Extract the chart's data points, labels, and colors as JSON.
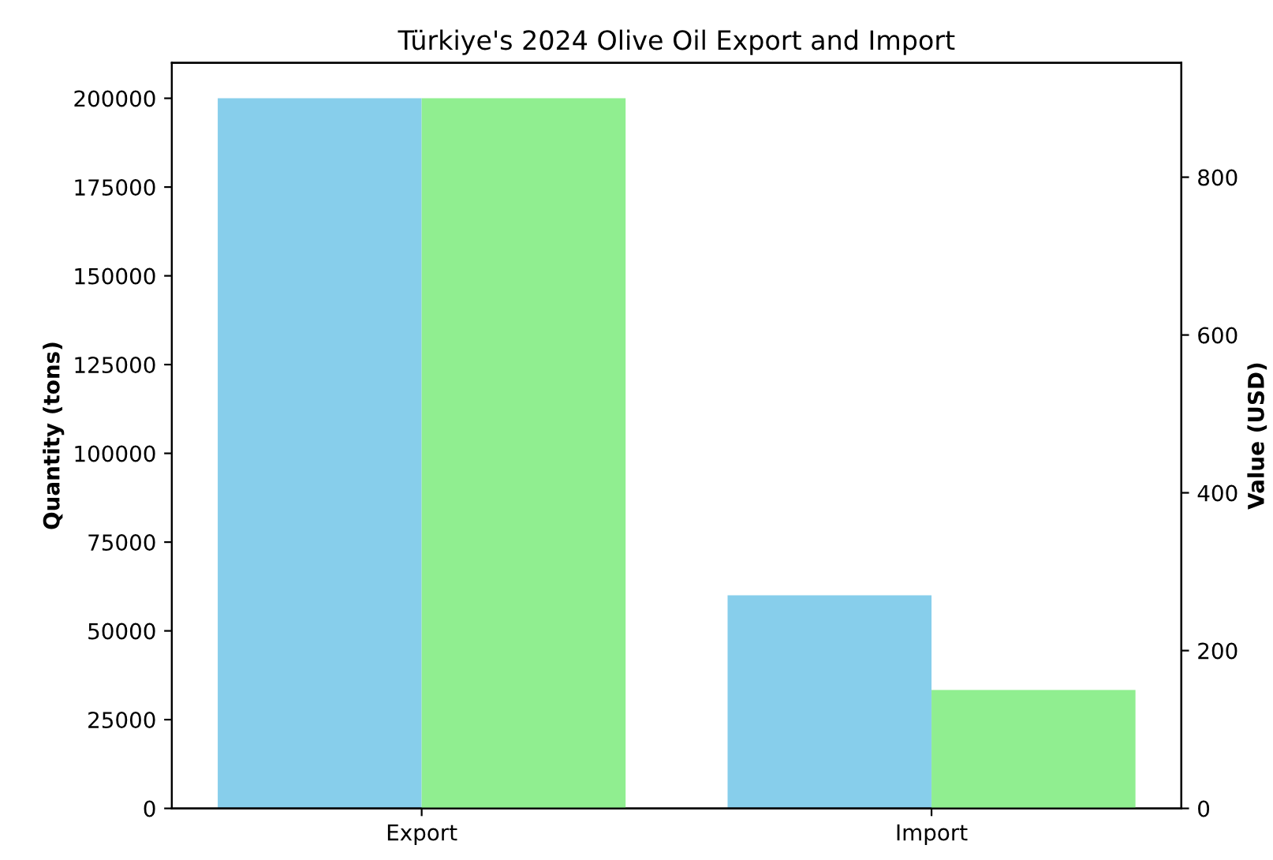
{
  "chart_data": {
    "type": "bar",
    "title": "Türkiye's 2024 Olive Oil Export and Import",
    "categories": [
      "Export",
      "Import"
    ],
    "ylabel": "Quantity (tons)",
    "y2label": "Value (USD)",
    "series": [
      {
        "color": "#87ceeb",
        "values": [
          200000,
          60000
        ]
      },
      {
        "color": "#90ee90",
        "values": [
          900,
          150
        ],
        "axis": "y2"
      }
    ],
    "ylim": [
      0,
      210000
    ],
    "yticks": [
      0,
      25000,
      50000,
      75000,
      100000,
      125000,
      150000,
      175000,
      200000
    ],
    "y2lim": [
      0,
      945
    ],
    "y2ticks": [
      0,
      200,
      400,
      600,
      800
    ],
    "grid": false,
    "legend": false
  }
}
